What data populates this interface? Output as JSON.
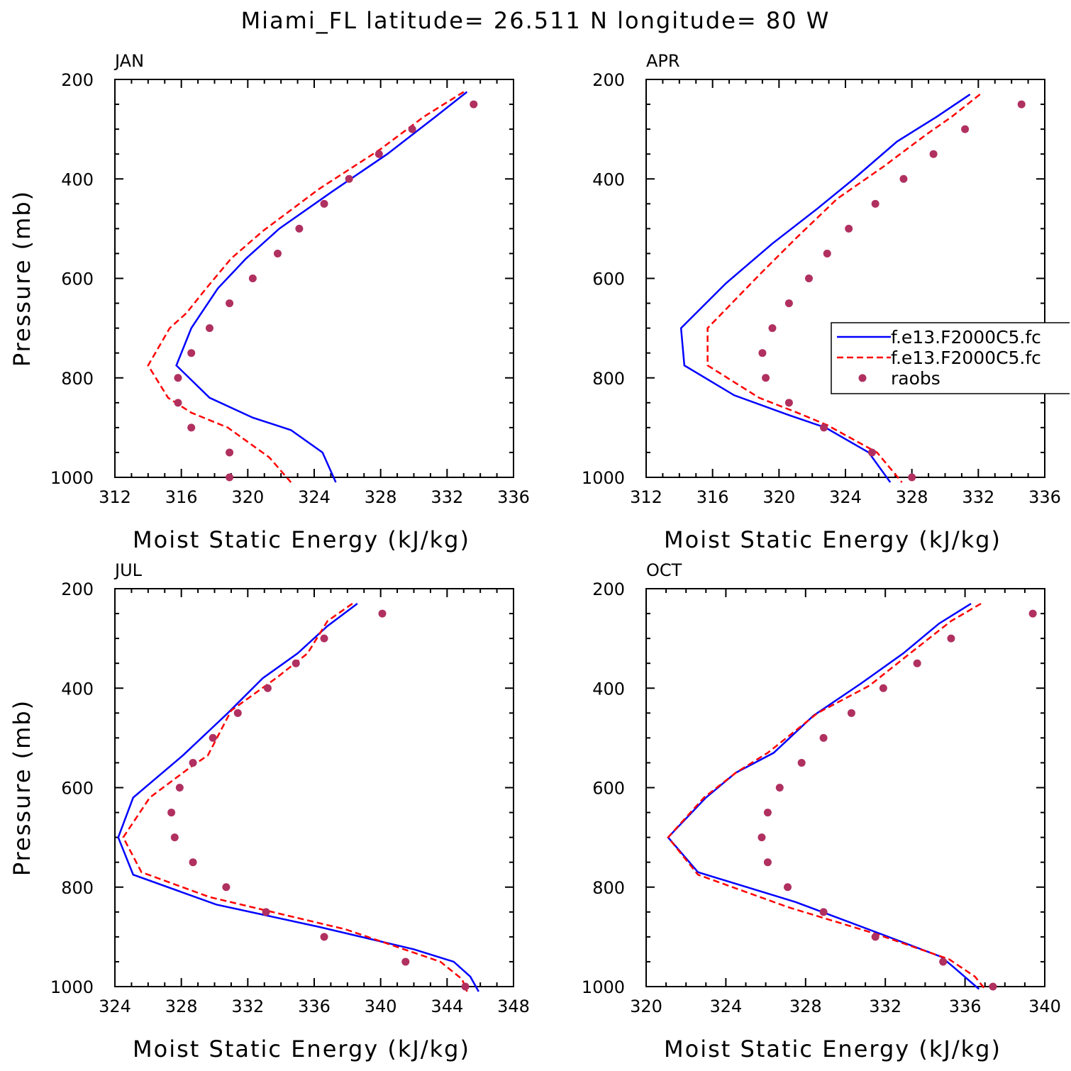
{
  "title": "Miami_FL  latitude= 26.511 N longitude= 80 W",
  "chart_data": [
    {
      "type": "line",
      "panel_label": "JAN",
      "xlabel": "Moist Static Energy (kJ/kg)",
      "ylabel": "Pressure (mb)",
      "xlim": [
        312,
        336
      ],
      "ylim": [
        1000,
        200
      ],
      "xticks": [
        "312",
        "316",
        "320",
        "324",
        "328",
        "332",
        "336"
      ],
      "yticks": [
        "200",
        "400",
        "600",
        "800",
        "1000"
      ],
      "series": [
        {
          "style": "solid",
          "color": "#0000ff",
          "x": [
            333.2,
            331.3,
            328.4,
            325.1,
            321.9,
            319.9,
            318.2,
            316.9,
            316.6,
            315.7,
            317.7,
            320.3,
            322.6,
            324.5,
            325.3
          ],
          "y": [
            225,
            275,
            350,
            425,
            500,
            560,
            620,
            685,
            700,
            775,
            840,
            880,
            905,
            950,
            1010
          ]
        },
        {
          "style": "dashed",
          "color": "#ff0000",
          "x": [
            333.0,
            330.6,
            328.0,
            324.3,
            320.9,
            319.0,
            317.5,
            316.3,
            315.3,
            314.0,
            315.2,
            316.6,
            318.8,
            321.3,
            322.6
          ],
          "y": [
            225,
            275,
            340,
            420,
            505,
            560,
            620,
            670,
            700,
            775,
            840,
            870,
            900,
            960,
            1010
          ]
        },
        {
          "style": "markers",
          "color": "#b03060",
          "x": [
            333.6,
            329.9,
            327.9,
            326.1,
            324.6,
            323.1,
            321.8,
            320.3,
            318.9,
            317.7,
            316.6,
            315.8,
            315.8,
            316.6,
            318.9,
            318.9
          ],
          "y": [
            250,
            300,
            350,
            400,
            450,
            500,
            550,
            600,
            650,
            700,
            750,
            800,
            850,
            900,
            950,
            1000
          ]
        }
      ]
    },
    {
      "type": "line",
      "panel_label": "APR",
      "xlabel": "Moist Static Energy (kJ/kg)",
      "ylabel": "",
      "xlim": [
        312,
        336
      ],
      "ylim": [
        1000,
        200
      ],
      "xticks": [
        "312",
        "316",
        "320",
        "324",
        "328",
        "332",
        "336"
      ],
      "yticks": [
        "200",
        "400",
        "600",
        "800",
        "1000"
      ],
      "legend": {
        "placement": "right",
        "entries": [
          "f.e13.F2000C5.fc",
          "f.e13.F2000C5.fc",
          "raobs"
        ]
      },
      "series": [
        {
          "name": "f.e13.F2000C5.fc",
          "style": "solid",
          "color": "#0000ff",
          "x": [
            331.5,
            329.5,
            327.1,
            324.5,
            322.3,
            319.6,
            316.8,
            314.1,
            314.3,
            317.3,
            320.6,
            322.8,
            325.4,
            326.7
          ],
          "y": [
            230,
            275,
            325,
            400,
            460,
            530,
            610,
            700,
            775,
            835,
            875,
            900,
            950,
            1010
          ]
        },
        {
          "name": "f.e13.F2000C5.fc",
          "style": "dashed",
          "color": "#ff0000",
          "x": [
            332.1,
            330.4,
            328.9,
            326.3,
            323.5,
            321.0,
            318.9,
            315.7,
            315.7,
            318.8,
            321.1,
            322.9,
            325.9,
            327.4
          ],
          "y": [
            230,
            275,
            310,
            375,
            440,
            520,
            590,
            700,
            775,
            840,
            870,
            895,
            950,
            1010
          ]
        },
        {
          "name": "raobs",
          "style": "markers",
          "color": "#b03060",
          "x": [
            334.6,
            331.2,
            329.3,
            327.5,
            325.8,
            324.2,
            322.9,
            321.8,
            320.6,
            319.6,
            319.0,
            319.2,
            320.6,
            322.7,
            325.6,
            328.0
          ],
          "y": [
            250,
            300,
            350,
            400,
            450,
            500,
            550,
            600,
            650,
            700,
            750,
            800,
            850,
            900,
            950,
            1000
          ]
        }
      ]
    },
    {
      "type": "line",
      "panel_label": "JUL",
      "xlabel": "Moist Static Energy (kJ/kg)",
      "ylabel": "Pressure (mb)",
      "xlim": [
        324,
        348
      ],
      "ylim": [
        1000,
        200
      ],
      "xticks": [
        "324",
        "328",
        "332",
        "336",
        "340",
        "344",
        "348"
      ],
      "yticks": [
        "200",
        "400",
        "600",
        "800",
        "1000"
      ],
      "series": [
        {
          "style": "solid",
          "color": "#0000ff",
          "x": [
            338.6,
            336.8,
            335.0,
            332.9,
            330.8,
            328.1,
            325.1,
            324.2,
            325.1,
            330.1,
            336.3,
            342.0,
            344.4,
            345.4,
            345.9
          ],
          "y": [
            230,
            275,
            330,
            380,
            450,
            535,
            620,
            700,
            775,
            835,
            880,
            925,
            950,
            980,
            1010
          ]
        },
        {
          "style": "dashed",
          "color": "#ff0000",
          "x": [
            338.3,
            336.8,
            335.6,
            333.7,
            331.0,
            329.6,
            328.5,
            326.1,
            324.5,
            325.6,
            329.7,
            337.9,
            343.6,
            344.9,
            345.2
          ],
          "y": [
            230,
            265,
            330,
            380,
            445,
            535,
            560,
            620,
            700,
            770,
            820,
            885,
            950,
            985,
            1010
          ]
        },
        {
          "style": "markers",
          "color": "#b03060",
          "x": [
            340.1,
            336.6,
            334.9,
            333.2,
            331.4,
            329.9,
            328.7,
            327.9,
            327.4,
            327.6,
            328.7,
            330.7,
            333.1,
            336.6,
            341.5,
            345.1
          ],
          "y": [
            250,
            300,
            350,
            400,
            450,
            500,
            550,
            600,
            650,
            700,
            750,
            800,
            850,
            900,
            950,
            1000
          ]
        }
      ]
    },
    {
      "type": "line",
      "panel_label": "OCT",
      "xlabel": "Moist Static Energy (kJ/kg)",
      "ylabel": "",
      "xlim": [
        320,
        340
      ],
      "ylim": [
        1000,
        200
      ],
      "xticks": [
        "320",
        "324",
        "328",
        "332",
        "336",
        "340"
      ],
      "yticks": [
        "200",
        "400",
        "600",
        "800",
        "1000"
      ],
      "series": [
        {
          "style": "solid",
          "color": "#0000ff",
          "x": [
            336.3,
            334.7,
            332.9,
            330.8,
            328.4,
            326.4,
            324.5,
            323.0,
            321.1,
            322.6,
            327.5,
            331.5,
            334.8,
            335.4,
            336.7
          ],
          "y": [
            230,
            270,
            330,
            390,
            455,
            530,
            570,
            620,
            700,
            770,
            830,
            890,
            940,
            960,
            1005
          ]
        },
        {
          "style": "dashed",
          "color": "#ff0000",
          "x": [
            336.8,
            335.3,
            333.4,
            331.2,
            328.6,
            326.1,
            324.5,
            322.9,
            321.1,
            322.6,
            327.1,
            331.6,
            335.2,
            336.5,
            337.0
          ],
          "y": [
            230,
            265,
            325,
            395,
            450,
            530,
            570,
            620,
            700,
            775,
            840,
            895,
            945,
            980,
            1005
          ]
        },
        {
          "style": "markers",
          "color": "#b03060",
          "x": [
            339.4,
            335.3,
            333.6,
            331.9,
            330.3,
            328.9,
            327.8,
            326.7,
            326.1,
            325.8,
            326.1,
            327.1,
            328.9,
            331.5,
            334.9,
            337.4
          ],
          "y": [
            250,
            300,
            350,
            400,
            450,
            500,
            550,
            600,
            650,
            700,
            750,
            800,
            850,
            900,
            950,
            1000
          ]
        }
      ]
    }
  ]
}
